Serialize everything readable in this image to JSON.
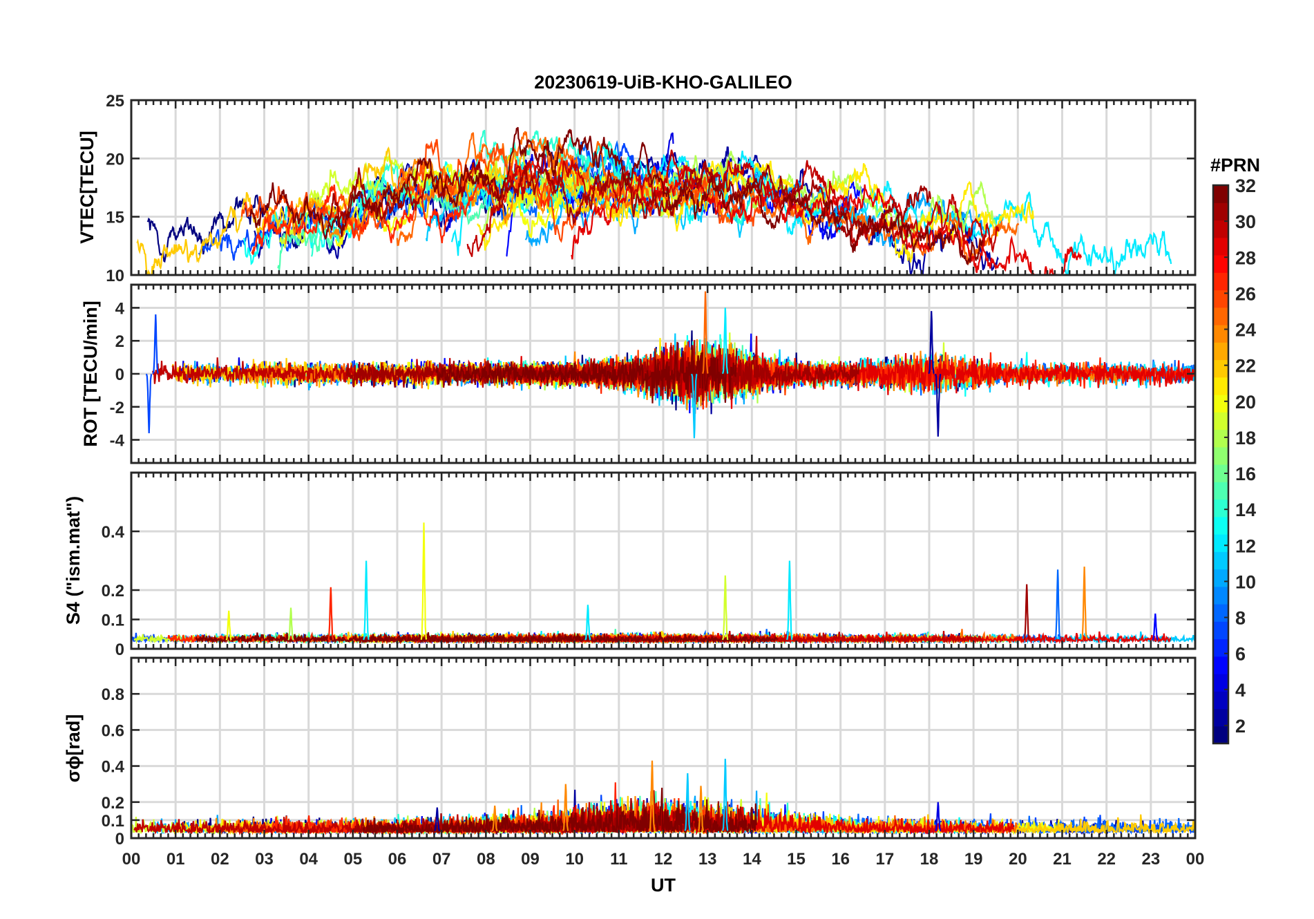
{
  "chart_data": {
    "type": "line",
    "title": "20230619-UiB-KHO-GALILEO",
    "xlabel": "UT",
    "x_range": [
      0,
      24
    ],
    "x_tick_labels": [
      "00",
      "01",
      "02",
      "03",
      "04",
      "05",
      "06",
      "07",
      "08",
      "09",
      "10",
      "11",
      "12",
      "13",
      "14",
      "15",
      "16",
      "17",
      "18",
      "19",
      "20",
      "21",
      "22",
      "23",
      "00"
    ],
    "grid": true,
    "colorbar": {
      "label": "#PRN",
      "range": [
        1,
        32
      ],
      "colormap": "jet",
      "ticks": [
        "2",
        "4",
        "6",
        "8",
        "10",
        "12",
        "14",
        "16",
        "18",
        "20",
        "22",
        "24",
        "26",
        "28",
        "30",
        "32"
      ],
      "placement": "right"
    },
    "series_prn": [
      1,
      2,
      4,
      5,
      7,
      8,
      10,
      11,
      12,
      13,
      14,
      15,
      18,
      19,
      20,
      21,
      22,
      24,
      25,
      26,
      27,
      29,
      30,
      31,
      32
    ],
    "panels": [
      {
        "id": "vtec",
        "ylabel": "VTEC[TECU]",
        "ylim": [
          10,
          25
        ],
        "yticks": [
          "10",
          "15",
          "20",
          "25"
        ],
        "peak_events": []
      },
      {
        "id": "rot",
        "ylabel": "ROT [TECU/min]",
        "ylim": [
          -5.4,
          5.4
        ],
        "yticks": [
          "-4",
          "-2",
          "0",
          "2",
          "4"
        ],
        "peak_events": [
          {
            "t": 12.95,
            "value": 5.0,
            "prn": 25
          },
          {
            "t": 12.7,
            "value": -3.9,
            "prn": 11
          },
          {
            "t": 18.2,
            "value": -3.8,
            "prn": 2
          },
          {
            "t": 0.4,
            "value": -3.6,
            "prn": 7
          },
          {
            "t": 0.55,
            "value": 3.6,
            "prn": 7
          },
          {
            "t": 18.05,
            "value": 3.8,
            "prn": 2
          },
          {
            "t": 13.4,
            "value": 4.0,
            "prn": 12
          }
        ]
      },
      {
        "id": "s4",
        "ylabel": "S4 (\"ism.mat\")",
        "ylim": [
          0,
          0.6
        ],
        "yticks": [
          "0",
          "0.1",
          "0.2",
          "0.4"
        ],
        "peak_events": [
          {
            "t": 6.6,
            "value": 0.43,
            "prn": 20
          },
          {
            "t": 5.3,
            "value": 0.3,
            "prn": 12
          },
          {
            "t": 14.85,
            "value": 0.3,
            "prn": 12
          },
          {
            "t": 21.5,
            "value": 0.28,
            "prn": 24
          },
          {
            "t": 20.9,
            "value": 0.27,
            "prn": 8
          },
          {
            "t": 13.4,
            "value": 0.25,
            "prn": 19
          },
          {
            "t": 20.2,
            "value": 0.22,
            "prn": 31
          },
          {
            "t": 4.5,
            "value": 0.21,
            "prn": 27
          },
          {
            "t": 3.6,
            "value": 0.14,
            "prn": 18
          },
          {
            "t": 2.2,
            "value": 0.13,
            "prn": 20
          },
          {
            "t": 10.3,
            "value": 0.15,
            "prn": 12
          },
          {
            "t": 23.1,
            "value": 0.12,
            "prn": 5
          }
        ]
      },
      {
        "id": "sigma_phi",
        "ylabel": "σϕ[rad]",
        "ylim": [
          0,
          1.0
        ],
        "yticks": [
          "0",
          "0.1",
          "0.2",
          "0.4",
          "0.6",
          "0.8"
        ],
        "peak_events": [
          {
            "t": 11.75,
            "value": 0.43,
            "prn": 24
          },
          {
            "t": 13.4,
            "value": 0.44,
            "prn": 11
          },
          {
            "t": 12.55,
            "value": 0.36,
            "prn": 11
          },
          {
            "t": 9.8,
            "value": 0.3,
            "prn": 24
          },
          {
            "t": 12.85,
            "value": 0.29,
            "prn": 24
          },
          {
            "t": 18.2,
            "value": 0.2,
            "prn": 4
          },
          {
            "t": 8.2,
            "value": 0.18,
            "prn": 24
          },
          {
            "t": 6.9,
            "value": 0.17,
            "prn": 2
          }
        ]
      }
    ]
  }
}
